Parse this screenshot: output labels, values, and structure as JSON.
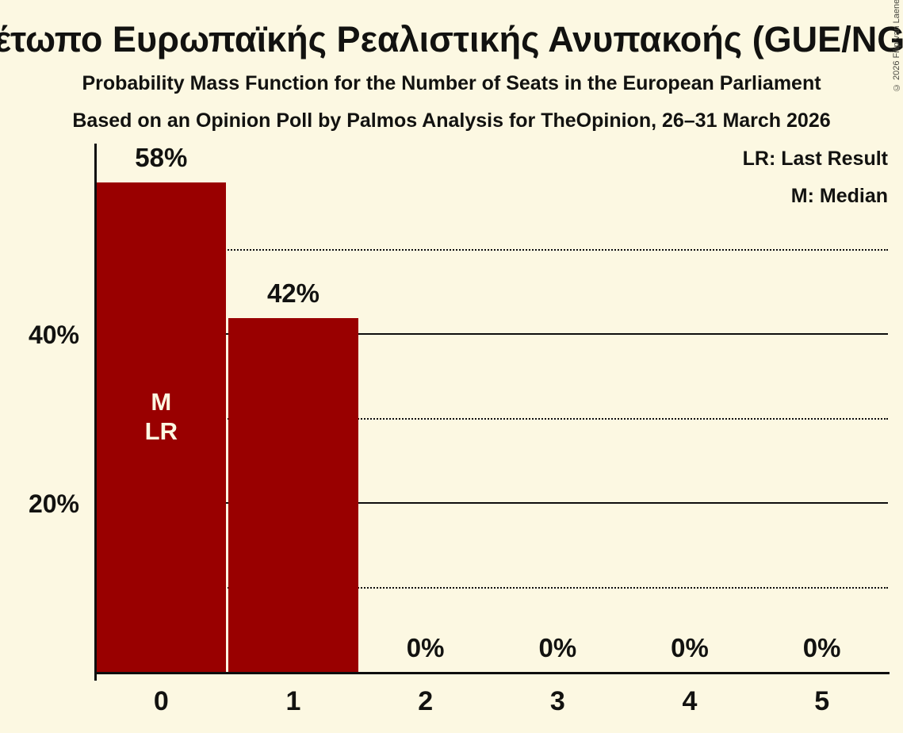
{
  "page": {
    "title": "Μέτωπο Ευρωπαϊκής Ρεαλιστικής Ανυπακοής (GUE/NGL)",
    "subtitle1": "Probability Mass Function for the Number of Seats in the European Parliament",
    "subtitle2": "Based on an Opinion Poll by Palmos Analysis for TheOpinion, 26–31 March 2026",
    "copyright": "© 2026 Filip van Laenen"
  },
  "legend": {
    "lr": "LR: Last Result",
    "m": "M: Median"
  },
  "colors": {
    "background": "#FCF8E2",
    "bar": "#990000",
    "text": "#121210",
    "bar_text": "#FCF8E2",
    "grid": "#0E0E0E",
    "copyright_text": "#4A4A42"
  },
  "chart_data": {
    "type": "bar",
    "title": "Μέτωπο Ευρωπαϊκής Ρεαλιστικής Ανυπακοής (GUE/NGL)",
    "xlabel": "",
    "ylabel": "",
    "categories": [
      "0",
      "1",
      "2",
      "3",
      "4",
      "5"
    ],
    "values": [
      58,
      42,
      0,
      0,
      0,
      0
    ],
    "value_labels": [
      "58%",
      "42%",
      "0%",
      "0%",
      "0%",
      "0%"
    ],
    "y_ticks": [
      {
        "value": 20,
        "label": "20%"
      },
      {
        "value": 40,
        "label": "40%"
      }
    ],
    "gridlines": [
      {
        "value": 10,
        "style": "dotted"
      },
      {
        "value": 20,
        "style": "solid"
      },
      {
        "value": 30,
        "style": "dotted"
      },
      {
        "value": 40,
        "style": "solid"
      },
      {
        "value": 50,
        "style": "dotted"
      }
    ],
    "ylim": [
      0,
      63
    ],
    "grid": "horizontal-partial",
    "legend_position": "top-right",
    "annotations": [
      {
        "bar_index": 0,
        "lines": [
          "M",
          "LR"
        ],
        "meaning": [
          "Median",
          "Last Result"
        ]
      }
    ]
  }
}
